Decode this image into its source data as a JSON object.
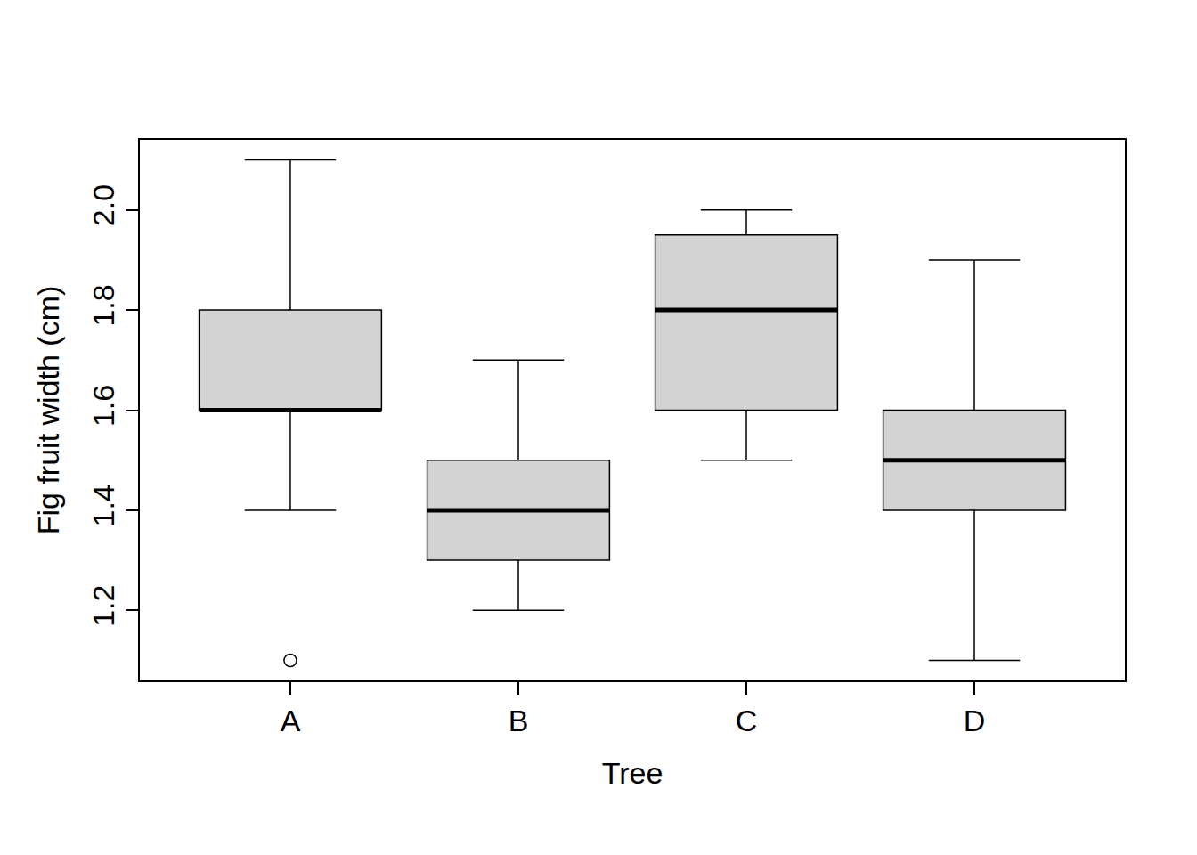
{
  "chart_data": {
    "type": "box",
    "x_label": "Tree",
    "y_label": "Fig fruit width (cm)",
    "categories": [
      "A",
      "B",
      "C",
      "D"
    ],
    "lower_whisker": [
      1.4,
      1.2,
      1.5,
      1.1
    ],
    "q1": [
      1.6,
      1.3,
      1.6,
      1.4
    ],
    "median": [
      1.6,
      1.4,
      1.8,
      1.5
    ],
    "q3": [
      1.8,
      1.5,
      1.95,
      1.6
    ],
    "upper_whisker": [
      2.1,
      1.7,
      2.0,
      1.9
    ],
    "outliers": [
      [
        1.1
      ],
      [],
      [],
      []
    ],
    "color": "#d3d3d3",
    "ylim": [
      1.06,
      2.14
    ],
    "yticks": [
      1.2,
      1.4,
      1.6,
      1.8,
      {
        "value": 2,
        "label": "2.0"
      }
    ],
    "grid": false
  }
}
